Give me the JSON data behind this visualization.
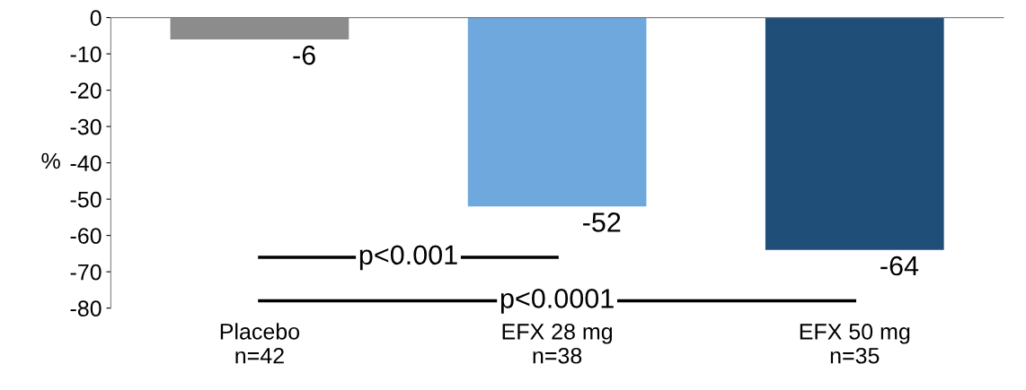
{
  "chart_data": {
    "type": "bar",
    "ylabel": "%",
    "categories": [
      "Placebo\nn=42",
      "EFX 28 mg\nn=38",
      "EFX 50 mg\nn=35"
    ],
    "values": [
      -6,
      -52,
      -64
    ],
    "colors": [
      "#8c8c8c",
      "#6fa8dc",
      "#1f4e79"
    ],
    "ylim": [
      -80,
      0
    ],
    "yticks": [
      0,
      -10,
      -20,
      -30,
      -40,
      -50,
      -60,
      -70,
      -80
    ],
    "data_labels": true,
    "grid": false,
    "legend": false,
    "annotations": [
      "p<0.001",
      "p<0.0001"
    ]
  }
}
